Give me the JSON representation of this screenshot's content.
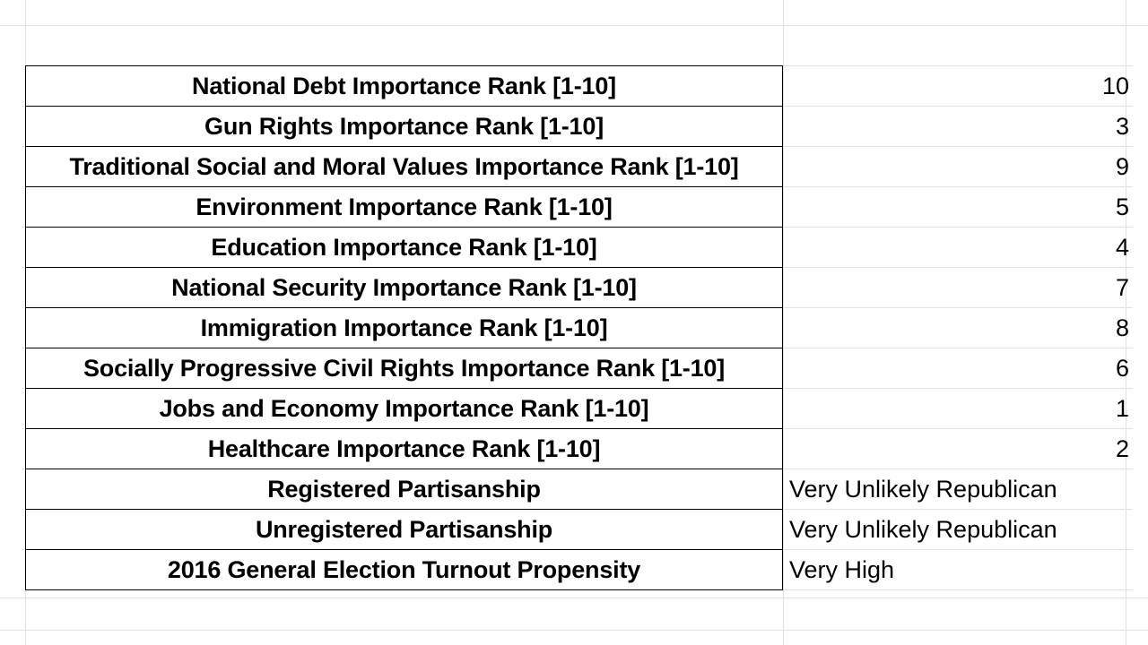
{
  "rows": [
    {
      "label": "National Debt Importance Rank [1-10]",
      "value": "10",
      "kind": "num"
    },
    {
      "label": "Gun Rights Importance Rank [1-10]",
      "value": "3",
      "kind": "num"
    },
    {
      "label": "Traditional Social and Moral Values Importance Rank [1-10]",
      "value": "9",
      "kind": "num"
    },
    {
      "label": "Environment Importance Rank [1-10]",
      "value": "5",
      "kind": "num"
    },
    {
      "label": "Education Importance Rank [1-10]",
      "value": "4",
      "kind": "num"
    },
    {
      "label": "National Security Importance Rank [1-10]",
      "value": "7",
      "kind": "num"
    },
    {
      "label": "Immigration Importance Rank [1-10]",
      "value": "8",
      "kind": "num"
    },
    {
      "label": "Socially Progressive Civil Rights Importance Rank [1-10]",
      "value": "6",
      "kind": "num"
    },
    {
      "label": "Jobs and Economy Importance Rank [1-10]",
      "value": "1",
      "kind": "num"
    },
    {
      "label": "Healthcare Importance Rank [1-10]",
      "value": "2",
      "kind": "num"
    },
    {
      "label": "Registered Partisanship",
      "value": "Very Unlikely Republican",
      "kind": "text"
    },
    {
      "label": "Unregistered Partisanship",
      "value": "Very Unlikely Republican",
      "kind": "text"
    },
    {
      "label": "2016 General Election Turnout Propensity",
      "value": "Very High",
      "kind": "text"
    }
  ]
}
